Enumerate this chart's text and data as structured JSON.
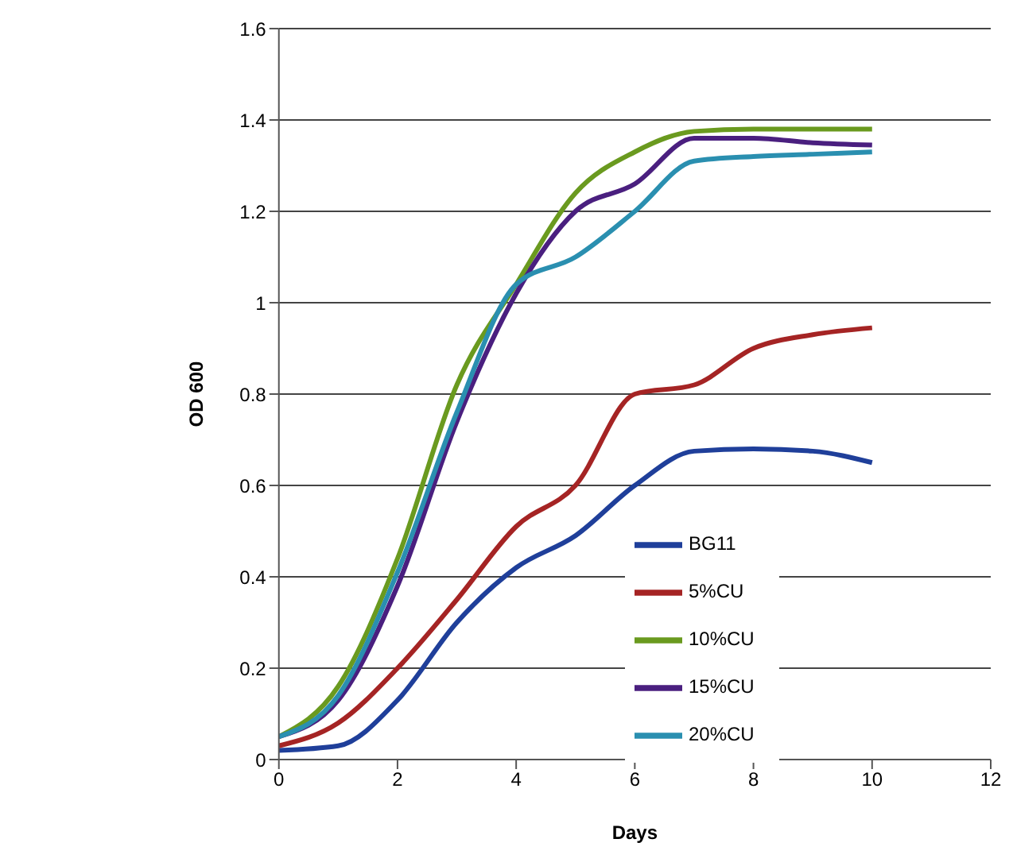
{
  "chart_data": {
    "type": "line",
    "xlabel": "Days",
    "ylabel": "OD 600",
    "x": [
      0,
      1,
      2,
      3,
      4,
      5,
      6,
      7,
      8,
      9,
      10
    ],
    "series": [
      {
        "name": "BG11",
        "color": "#1f3f9a",
        "values": [
          0.02,
          0.03,
          0.13,
          0.3,
          0.42,
          0.49,
          0.6,
          0.675,
          0.68,
          0.675,
          0.65
        ]
      },
      {
        "name": "5%CU",
        "color": "#a52424",
        "values": [
          0.03,
          0.08,
          0.2,
          0.35,
          0.51,
          0.6,
          0.8,
          0.82,
          0.9,
          0.93,
          0.945
        ]
      },
      {
        "name": "10%CU",
        "color": "#6a9a1f",
        "values": [
          0.05,
          0.16,
          0.44,
          0.82,
          1.04,
          1.24,
          1.33,
          1.375,
          1.38,
          1.38,
          1.38
        ]
      },
      {
        "name": "15%CU",
        "color": "#4a1f7f",
        "values": [
          0.05,
          0.13,
          0.38,
          0.74,
          1.02,
          1.2,
          1.26,
          1.36,
          1.36,
          1.35,
          1.345
        ]
      },
      {
        "name": "20%CU",
        "color": "#2a8fb0",
        "values": [
          0.05,
          0.14,
          0.41,
          0.76,
          1.04,
          1.1,
          1.2,
          1.31,
          1.32,
          1.325,
          1.33
        ]
      }
    ],
    "xlim": [
      0,
      12
    ],
    "xticks": [
      0,
      2,
      4,
      6,
      8,
      10,
      12
    ],
    "ylim": [
      0,
      1.6
    ],
    "yticks": [
      0,
      0.2,
      0.4,
      0.6,
      0.8,
      1,
      1.2,
      1.4,
      1.6
    ],
    "grid": "y",
    "legend": "bottom right",
    "marker": "none",
    "line_style": "solid"
  }
}
